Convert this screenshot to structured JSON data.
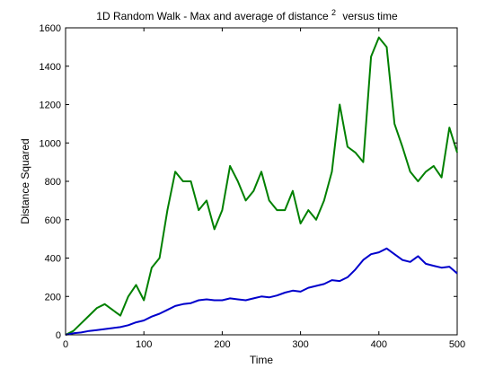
{
  "chart_data": {
    "type": "line",
    "title": "1D Random Walk - Max and average of distance",
    "title_superscript": "2",
    "title_suffix": "versus time",
    "xlabel": "Time",
    "ylabel": "Distance Squared",
    "xlim": [
      0,
      500
    ],
    "ylim": [
      0,
      1600
    ],
    "xticks": [
      0,
      100,
      200,
      300,
      400,
      500
    ],
    "yticks": [
      0,
      200,
      400,
      600,
      800,
      1000,
      1200,
      1400,
      1600
    ],
    "grid": false,
    "series": [
      {
        "color": "#008000",
        "x": [
          0,
          10,
          20,
          30,
          40,
          50,
          60,
          70,
          80,
          90,
          100,
          110,
          120,
          130,
          140,
          150,
          160,
          170,
          180,
          190,
          200,
          210,
          220,
          230,
          240,
          250,
          260,
          270,
          280,
          290,
          300,
          310,
          320,
          330,
          340,
          350,
          360,
          370,
          380,
          390,
          400,
          410,
          420,
          430,
          440,
          450,
          460,
          470,
          480,
          490,
          500
        ],
        "y": [
          0,
          20,
          60,
          100,
          140,
          160,
          130,
          100,
          200,
          260,
          180,
          350,
          400,
          650,
          850,
          800,
          800,
          650,
          700,
          550,
          650,
          880,
          800,
          700,
          750,
          850,
          700,
          650,
          650,
          750,
          580,
          650,
          600,
          700,
          850,
          1200,
          980,
          950,
          900,
          1450,
          1550,
          1500,
          1100,
          980,
          850,
          800,
          850,
          880,
          820,
          1080,
          950
        ]
      },
      {
        "color": "#0000cc",
        "x": [
          0,
          10,
          20,
          30,
          40,
          50,
          60,
          70,
          80,
          90,
          100,
          110,
          120,
          130,
          140,
          150,
          160,
          170,
          180,
          190,
          200,
          210,
          220,
          230,
          240,
          250,
          260,
          270,
          280,
          290,
          300,
          310,
          320,
          330,
          340,
          350,
          360,
          370,
          380,
          390,
          400,
          410,
          420,
          430,
          440,
          450,
          460,
          470,
          480,
          490,
          500
        ],
        "y": [
          0,
          8,
          12,
          20,
          25,
          30,
          35,
          40,
          50,
          65,
          75,
          95,
          110,
          130,
          150,
          160,
          165,
          180,
          185,
          180,
          180,
          190,
          185,
          180,
          190,
          200,
          195,
          205,
          220,
          230,
          225,
          245,
          255,
          265,
          285,
          280,
          300,
          340,
          390,
          420,
          430,
          450,
          420,
          390,
          380,
          410,
          370,
          360,
          350,
          355,
          320
        ]
      }
    ]
  }
}
